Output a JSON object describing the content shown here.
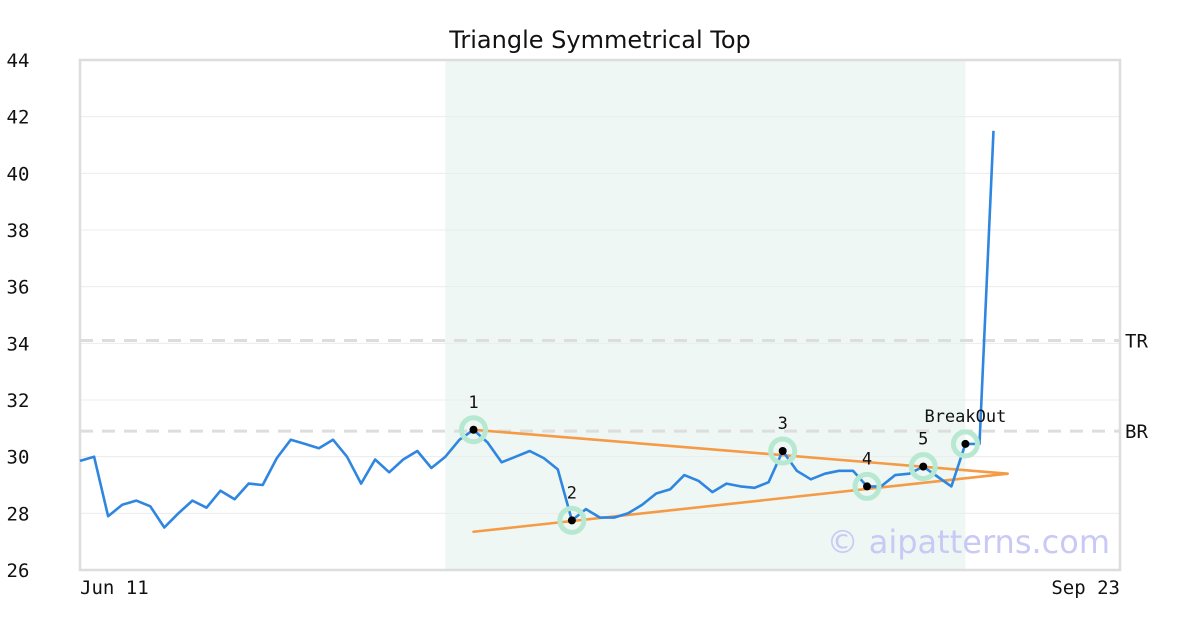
{
  "chart_data": {
    "type": "line",
    "title": "Triangle Symmetrical Top",
    "xlabel": "",
    "ylabel": "",
    "ylim": [
      26,
      44
    ],
    "yticks": [
      26,
      28,
      30,
      32,
      34,
      36,
      38,
      40,
      42,
      44
    ],
    "x_range": [
      0,
      74
    ],
    "x_tick_labels": [
      {
        "x": 0,
        "label": "Jun 11"
      },
      {
        "x": 74,
        "label": "Sep 23"
      }
    ],
    "grid": "horizontal",
    "colors": {
      "price": "#2f86e0",
      "trendline": "#f59a45",
      "pattern_zone": "#eef7f3",
      "marker_halo": "#b7e8d1",
      "level_line": "#dddddd",
      "frame": "#dddddd"
    },
    "pattern_zone": {
      "x_start": 26,
      "x_end": 63
    },
    "price": [
      29.85,
      30.0,
      27.9,
      28.3,
      28.45,
      28.25,
      27.5,
      28.0,
      28.45,
      28.2,
      28.8,
      28.5,
      29.05,
      29.0,
      29.95,
      30.6,
      30.45,
      30.3,
      30.6,
      30.0,
      29.05,
      29.9,
      29.45,
      29.9,
      30.2,
      29.6,
      30.0,
      30.6,
      30.95,
      30.5,
      29.8,
      30.0,
      30.2,
      29.95,
      29.55,
      27.75,
      28.15,
      27.85,
      27.85,
      28.0,
      28.3,
      28.7,
      28.85,
      29.35,
      29.15,
      28.75,
      29.05,
      28.95,
      28.9,
      29.1,
      30.2,
      29.5,
      29.2,
      29.4,
      29.5,
      29.5,
      28.95,
      28.95,
      29.35,
      29.4,
      29.65,
      29.3,
      28.95,
      30.45,
      30.45,
      41.5
    ],
    "trendlines": [
      {
        "x1": 28,
        "y1": 30.95,
        "x2": 66,
        "y2": 29.4
      },
      {
        "x1": 28,
        "y1": 27.35,
        "x2": 66,
        "y2": 29.4
      }
    ],
    "levels": [
      {
        "label": "TR",
        "value": 34.1
      },
      {
        "label": "BR",
        "value": 30.9
      }
    ],
    "points": [
      {
        "label": "1",
        "x": 28,
        "y": 30.95
      },
      {
        "label": "2",
        "x": 35,
        "y": 27.75
      },
      {
        "label": "3",
        "x": 50,
        "y": 30.2
      },
      {
        "label": "4",
        "x": 56,
        "y": 28.95
      },
      {
        "label": "5",
        "x": 60,
        "y": 29.65
      },
      {
        "label": "BreakOut",
        "x": 63,
        "y": 30.45
      }
    ],
    "watermark": "© aipatterns.com"
  }
}
